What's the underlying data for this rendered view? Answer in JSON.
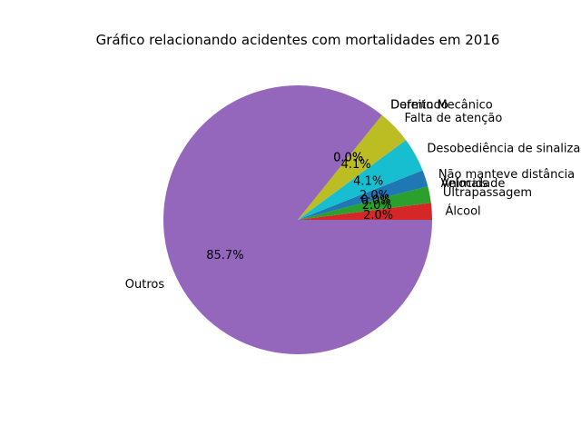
{
  "chart_data": {
    "type": "pie",
    "title": "Gráfico relacionando acidentes com mortalidades em 2016",
    "start_angle_deg": 0,
    "direction": "counterclockwise",
    "slices": [
      {
        "label": "Álcool",
        "value": 2.0,
        "pct_label": "2.0%",
        "color": "#d62728"
      },
      {
        "label": "Ultrapassagem",
        "value": 2.0,
        "pct_label": "2.0%",
        "color": "#2ca02c"
      },
      {
        "label": "Velocidade",
        "value": 0.0,
        "pct_label": "0.0%",
        "color": "#ff7f0e"
      },
      {
        "label": "Animais",
        "value": 0.0,
        "pct_label": "0.0%",
        "color": "#8c564b"
      },
      {
        "label": "Não manteve distância",
        "value": 2.0,
        "pct_label": "2.0%",
        "color": "#1f77b4"
      },
      {
        "label": "Desobediência de sinalização",
        "value": 4.1,
        "pct_label": "4.1%",
        "color": "#17becf"
      },
      {
        "label": "Falta de atenção",
        "value": 4.1,
        "pct_label": "4.1%",
        "color": "#bcbd22"
      },
      {
        "label": "Dormindo",
        "value": 0.0,
        "pct_label": "0.0%",
        "color": "#7f7f7f"
      },
      {
        "label": "Defeito Mecânico",
        "value": 0.0,
        "pct_label": "0.0%",
        "color": "#e377c2"
      },
      {
        "label": "Outros",
        "value": 85.7,
        "pct_label": "85.7%",
        "color": "#9467bd"
      }
    ]
  }
}
